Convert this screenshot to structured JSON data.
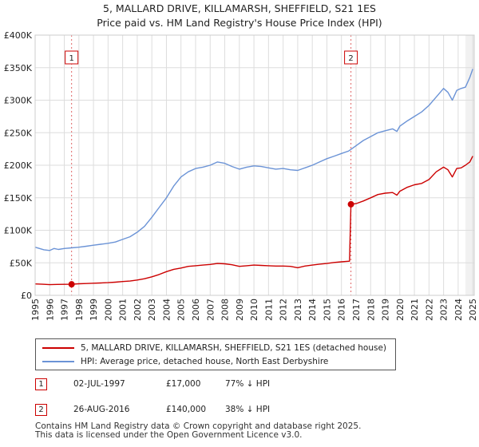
{
  "title_line1": "5, MALLARD DRIVE, KILLAMARSH, SHEFFIELD, S21 1ES",
  "title_line2": "Price paid vs. HM Land Registry's House Price Index (HPI)",
  "chart_data": {
    "type": "line",
    "xlim": [
      1995,
      2025.1
    ],
    "ylim": [
      0,
      400000
    ],
    "x_ticks": [
      1995,
      1996,
      1997,
      1998,
      1999,
      2000,
      2001,
      2002,
      2003,
      2004,
      2005,
      2006,
      2007,
      2008,
      2009,
      2010,
      2011,
      2012,
      2013,
      2014,
      2015,
      2016,
      2017,
      2018,
      2019,
      2020,
      2021,
      2022,
      2023,
      2024,
      2025
    ],
    "y_ticks": [
      {
        "value": 0,
        "label": "£0"
      },
      {
        "value": 50000,
        "label": "£50K"
      },
      {
        "value": 100000,
        "label": "£100K"
      },
      {
        "value": 150000,
        "label": "£150K"
      },
      {
        "value": 200000,
        "label": "£200K"
      },
      {
        "value": 250000,
        "label": "£250K"
      },
      {
        "value": 300000,
        "label": "£300K"
      },
      {
        "value": 350000,
        "label": "£350K"
      },
      {
        "value": 400000,
        "label": "£400K"
      }
    ],
    "grid": true,
    "shaded_region": [
      2024.5,
      2025.1
    ],
    "series": [
      {
        "name": "5, MALLARD DRIVE, KILLAMARSH, SHEFFIELD, S21 1ES (detached house)",
        "color": "#cc0000",
        "points": [
          [
            1995.0,
            17500
          ],
          [
            1995.5,
            17000
          ],
          [
            1996.0,
            16500
          ],
          [
            1996.5,
            16800
          ],
          [
            1997.0,
            16900
          ],
          [
            1997.5,
            17000
          ],
          [
            1998.0,
            17800
          ],
          [
            1998.5,
            18200
          ],
          [
            1999.0,
            18600
          ],
          [
            1999.5,
            19000
          ],
          [
            2000.0,
            19500
          ],
          [
            2000.5,
            20200
          ],
          [
            2001.0,
            21200
          ],
          [
            2001.5,
            22000
          ],
          [
            2002.0,
            23500
          ],
          [
            2002.5,
            25500
          ],
          [
            2003.0,
            28500
          ],
          [
            2003.5,
            32000
          ],
          [
            2004.0,
            36500
          ],
          [
            2004.5,
            40000
          ],
          [
            2005.0,
            42000
          ],
          [
            2005.5,
            44500
          ],
          [
            2006.0,
            45500
          ],
          [
            2006.5,
            46500
          ],
          [
            2007.0,
            47500
          ],
          [
            2007.5,
            49000
          ],
          [
            2008.0,
            48500
          ],
          [
            2008.5,
            47000
          ],
          [
            2009.0,
            44500
          ],
          [
            2009.5,
            45500
          ],
          [
            2010.0,
            46500
          ],
          [
            2010.5,
            46000
          ],
          [
            2011.0,
            45500
          ],
          [
            2011.5,
            45000
          ],
          [
            2012.0,
            45000
          ],
          [
            2012.5,
            44500
          ],
          [
            2013.0,
            42500
          ],
          [
            2013.5,
            45000
          ],
          [
            2014.0,
            46500
          ],
          [
            2014.5,
            48000
          ],
          [
            2015.0,
            49000
          ],
          [
            2015.5,
            50500
          ],
          [
            2016.0,
            51500
          ],
          [
            2016.55,
            52500
          ],
          [
            2016.65,
            140000
          ],
          [
            2017.0,
            141000
          ],
          [
            2017.5,
            145000
          ],
          [
            2018.0,
            150000
          ],
          [
            2018.5,
            155000
          ],
          [
            2019.0,
            157000
          ],
          [
            2019.5,
            158000
          ],
          [
            2019.8,
            154000
          ],
          [
            2020.0,
            160000
          ],
          [
            2020.5,
            166000
          ],
          [
            2021.0,
            170000
          ],
          [
            2021.5,
            172000
          ],
          [
            2022.0,
            178000
          ],
          [
            2022.5,
            190000
          ],
          [
            2023.0,
            197000
          ],
          [
            2023.3,
            193000
          ],
          [
            2023.6,
            182000
          ],
          [
            2023.9,
            195000
          ],
          [
            2024.2,
            196000
          ],
          [
            2024.5,
            200000
          ],
          [
            2024.8,
            205000
          ],
          [
            2025.0,
            214000
          ]
        ]
      },
      {
        "name": "HPI: Average price, detached house, North East Derbyshire",
        "color": "#6b93d6",
        "points": [
          [
            1995.0,
            74000
          ],
          [
            1995.3,
            72000
          ],
          [
            1995.6,
            70000
          ],
          [
            1996.0,
            69000
          ],
          [
            1996.3,
            72000
          ],
          [
            1996.6,
            70500
          ],
          [
            1997.0,
            72000
          ],
          [
            1997.5,
            73000
          ],
          [
            1998.0,
            74000
          ],
          [
            1998.5,
            75500
          ],
          [
            1999.0,
            77000
          ],
          [
            1999.5,
            78500
          ],
          [
            2000.0,
            80000
          ],
          [
            2000.5,
            82000
          ],
          [
            2001.0,
            86000
          ],
          [
            2001.5,
            90000
          ],
          [
            2002.0,
            97000
          ],
          [
            2002.5,
            106000
          ],
          [
            2003.0,
            120000
          ],
          [
            2003.5,
            135000
          ],
          [
            2004.0,
            150000
          ],
          [
            2004.5,
            168000
          ],
          [
            2005.0,
            182000
          ],
          [
            2005.5,
            190000
          ],
          [
            2006.0,
            195000
          ],
          [
            2006.5,
            197000
          ],
          [
            2007.0,
            200000
          ],
          [
            2007.5,
            205000
          ],
          [
            2008.0,
            203000
          ],
          [
            2008.5,
            198000
          ],
          [
            2009.0,
            194000
          ],
          [
            2009.5,
            197000
          ],
          [
            2010.0,
            199000
          ],
          [
            2010.5,
            198000
          ],
          [
            2011.0,
            196000
          ],
          [
            2011.5,
            194000
          ],
          [
            2012.0,
            195000
          ],
          [
            2012.5,
            193000
          ],
          [
            2013.0,
            192000
          ],
          [
            2013.5,
            196000
          ],
          [
            2014.0,
            200000
          ],
          [
            2014.5,
            205000
          ],
          [
            2015.0,
            210000
          ],
          [
            2015.5,
            214000
          ],
          [
            2016.0,
            218000
          ],
          [
            2016.5,
            222000
          ],
          [
            2017.0,
            230000
          ],
          [
            2017.5,
            238000
          ],
          [
            2018.0,
            244000
          ],
          [
            2018.5,
            250000
          ],
          [
            2019.0,
            253000
          ],
          [
            2019.5,
            256000
          ],
          [
            2019.8,
            252000
          ],
          [
            2020.0,
            260000
          ],
          [
            2020.5,
            268000
          ],
          [
            2021.0,
            275000
          ],
          [
            2021.5,
            282000
          ],
          [
            2022.0,
            292000
          ],
          [
            2022.5,
            305000
          ],
          [
            2023.0,
            318000
          ],
          [
            2023.3,
            312000
          ],
          [
            2023.6,
            300000
          ],
          [
            2023.9,
            315000
          ],
          [
            2024.2,
            318000
          ],
          [
            2024.5,
            320000
          ],
          [
            2024.8,
            335000
          ],
          [
            2025.0,
            348000
          ]
        ]
      }
    ],
    "annotations": [
      {
        "label": "1",
        "x": 1997.5,
        "y": 17000
      },
      {
        "label": "2",
        "x": 2016.65,
        "y": 140000
      }
    ]
  },
  "legend": {
    "items": [
      {
        "label": "5, MALLARD DRIVE, KILLAMARSH, SHEFFIELD, S21 1ES (detached house)",
        "color": "#cc0000"
      },
      {
        "label": "HPI: Average price, detached house, North East Derbyshire",
        "color": "#6b93d6"
      }
    ]
  },
  "sales": [
    {
      "num": "1",
      "date": "02-JUL-1997",
      "price": "£17,000",
      "pct": "77% ↓ HPI"
    },
    {
      "num": "2",
      "date": "26-AUG-2016",
      "price": "£140,000",
      "pct": "38% ↓ HPI"
    }
  ],
  "footer": {
    "line1": "Contains HM Land Registry data © Crown copyright and database right 2025.",
    "line2": "This data is licensed under the Open Government Licence v3.0."
  }
}
